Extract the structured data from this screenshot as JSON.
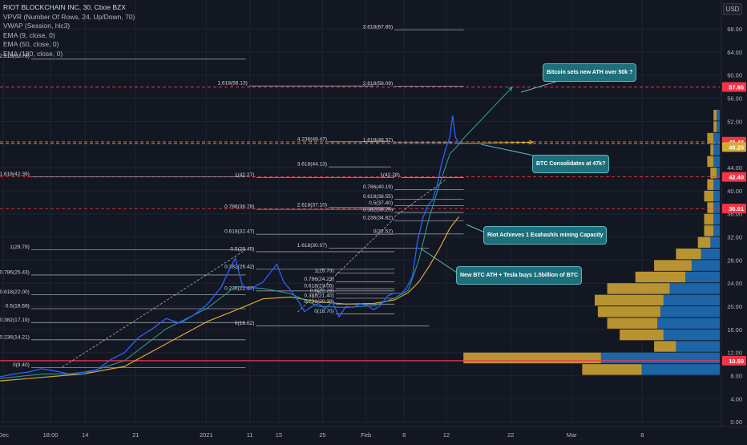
{
  "legend": {
    "title": "RIOT BLOCKCHAIN INC, 30, Cboe BZX",
    "lines": [
      "VPVR (Number Of Rows, 24, Up/Down, 70)",
      "VWAP (Session, hlc3)",
      "EMA (9, close, 0)",
      "EMA (50, close, 0)",
      "EMA (180, close, 0)"
    ]
  },
  "currency_button": "USD",
  "colors": {
    "bg": "#131722",
    "grid": "#1f2433",
    "price": "#2962ff",
    "ema_fast": "#2fa39a",
    "ema_slow": "#d6a935",
    "red_line": "#f23645",
    "fib": "#b2b5be",
    "vol_up": "#d6a935",
    "vol_down": "#1e73be",
    "callout": "#1d6f7a"
  },
  "chart_data": {
    "type": "line",
    "title": "RIOT BLOCKCHAIN INC, 30, Cboe BZX",
    "y_axis": {
      "range": [
        -0.8,
        73
      ],
      "ticks": [
        "0.00",
        "4.00",
        "8.00",
        "12.00",
        "16.00",
        "20.00",
        "24.00",
        "28.00",
        "32.00",
        "36.00",
        "40.00",
        "44.00",
        "48.00",
        "52.00",
        "56.00",
        "60.00",
        "64.00",
        "68.00"
      ]
    },
    "x_axis": {
      "range": [
        0,
        104
      ],
      "ticks": [
        {
          "x": 0.5,
          "label": "Dec"
        },
        {
          "x": 7.3,
          "label": "18:00"
        },
        {
          "x": 12.3,
          "label": "14"
        },
        {
          "x": 19.6,
          "label": "21"
        },
        {
          "x": 29.8,
          "label": "2021"
        },
        {
          "x": 36.1,
          "label": "11"
        },
        {
          "x": 40.3,
          "label": "15"
        },
        {
          "x": 46.6,
          "label": "25"
        },
        {
          "x": 52.9,
          "label": "Feb"
        },
        {
          "x": 58.4,
          "label": "8"
        },
        {
          "x": 64.5,
          "label": "12"
        },
        {
          "x": 73.8,
          "label": "22"
        },
        {
          "x": 82.6,
          "label": "Mar"
        },
        {
          "x": 92.8,
          "label": "8"
        }
      ]
    },
    "price": [
      [
        0,
        7.8
      ],
      [
        2,
        8.3
      ],
      [
        4,
        8.6
      ],
      [
        6,
        9.2
      ],
      [
        8,
        8.8
      ],
      [
        10,
        8.3
      ],
      [
        12,
        8.6
      ],
      [
        14,
        9.0
      ],
      [
        16,
        10.8
      ],
      [
        18,
        12.0
      ],
      [
        20,
        14.6
      ],
      [
        22,
        16.1
      ],
      [
        24,
        17.9
      ],
      [
        26,
        17.1
      ],
      [
        28,
        18.5
      ],
      [
        30,
        20.4
      ],
      [
        32,
        23.4
      ],
      [
        33,
        26.0
      ],
      [
        34,
        28.3
      ],
      [
        35,
        23.7
      ],
      [
        36,
        22.9
      ],
      [
        38,
        24.2
      ],
      [
        40,
        27.3
      ],
      [
        41,
        24.2
      ],
      [
        42,
        22.8
      ],
      [
        43,
        21.1
      ],
      [
        44,
        19.1
      ],
      [
        45,
        19.9
      ],
      [
        46,
        20.5
      ],
      [
        47,
        19.6
      ],
      [
        48,
        20.8
      ],
      [
        49,
        18.2
      ],
      [
        50,
        20.0
      ],
      [
        51,
        19.8
      ],
      [
        52,
        20.4
      ],
      [
        53,
        20.2
      ],
      [
        54,
        19.4
      ],
      [
        55,
        20.2
      ],
      [
        56,
        21.8
      ],
      [
        57,
        22.3
      ],
      [
        58,
        22.2
      ],
      [
        58.7,
        23.1
      ],
      [
        59.6,
        25.2
      ],
      [
        60.3,
        31.1
      ],
      [
        61.1,
        35.3
      ],
      [
        61.8,
        37.4
      ],
      [
        62.5,
        38.4
      ],
      [
        63.2,
        41.1
      ],
      [
        63.7,
        44.1
      ],
      [
        64.4,
        47.3
      ],
      [
        65.0,
        49.3
      ],
      [
        65.4,
        53.0
      ],
      [
        65.8,
        49.3
      ],
      [
        66.3,
        48.0
      ]
    ],
    "ema_fast": [
      [
        0,
        7.5
      ],
      [
        6,
        8.3
      ],
      [
        12,
        8.3
      ],
      [
        18,
        10.6
      ],
      [
        24,
        16.1
      ],
      [
        30,
        19.7
      ],
      [
        34,
        23.4
      ],
      [
        38,
        23.1
      ],
      [
        42,
        22.2
      ],
      [
        46,
        20.0
      ],
      [
        50,
        19.8
      ],
      [
        54,
        20.1
      ],
      [
        57,
        21.4
      ],
      [
        59,
        22.8
      ],
      [
        60.5,
        27.9
      ],
      [
        62,
        35.3
      ],
      [
        63.5,
        41.1
      ],
      [
        65,
        46.4
      ],
      [
        66.3,
        48.0
      ]
    ],
    "ema_slow": [
      [
        0,
        7.1
      ],
      [
        6,
        7.7
      ],
      [
        12,
        8.3
      ],
      [
        18,
        9.6
      ],
      [
        24,
        13.5
      ],
      [
        30,
        17.4
      ],
      [
        34,
        19.3
      ],
      [
        38,
        21.3
      ],
      [
        42,
        21.6
      ],
      [
        46,
        20.8
      ],
      [
        50,
        20.4
      ],
      [
        54,
        20.5
      ],
      [
        57,
        21.1
      ],
      [
        59,
        22.4
      ],
      [
        60.5,
        24.2
      ],
      [
        62,
        26.9
      ],
      [
        63.5,
        30.0
      ],
      [
        65,
        33.5
      ],
      [
        66.3,
        35.5
      ]
    ],
    "horizontal_levels": [
      {
        "price": 57.95,
        "label": "57.95",
        "style": "dashed",
        "color": "#f23645"
      },
      {
        "price": 48.48,
        "label": "48.48",
        "style": "dashed",
        "color": "#f23645"
      },
      {
        "price": 48.25,
        "label": "48.25",
        "style": "dashed",
        "color": "#d6a935"
      },
      {
        "price": 42.4,
        "label": "42.40",
        "style": "dashed",
        "color": "#f23645"
      },
      {
        "price": 36.91,
        "label": "36.91",
        "style": "dashed",
        "color": "#f23645"
      },
      {
        "price": 10.59,
        "label": "10.59",
        "style": "solid",
        "color": "#f23645"
      }
    ],
    "fib_levels": [
      {
        "text": "3.618(67.85)",
        "x1": 57,
        "x2": 67,
        "price": 67.85
      },
      {
        "text": "2.618(62.78)",
        "x1": 4.5,
        "x2": 35.5,
        "price": 62.78
      },
      {
        "text": "1.618(58.13)",
        "x1": 36,
        "x2": 54,
        "price": 58.13
      },
      {
        "text": "2.618(58.09)",
        "x1": 57,
        "x2": 67,
        "price": 58.09
      },
      {
        "text": "4.236(48.47)",
        "x1": 47.5,
        "x2": 56,
        "price": 48.47
      },
      {
        "text": "1.618(48.32)",
        "x1": 57,
        "x2": 65.5,
        "price": 48.32
      },
      {
        "text": "3.618(44.13)",
        "x1": 47.5,
        "x2": 56.5,
        "price": 44.13
      },
      {
        "text": "1.618(42.39)",
        "x1": 4.5,
        "x2": 35.5,
        "price": 42.39
      },
      {
        "text": "1(42.27)",
        "x1": 37,
        "x2": 57,
        "price": 42.27
      },
      {
        "text": "1(42.28)",
        "x1": 58,
        "x2": 67,
        "price": 42.28
      },
      {
        "text": "0.786(40.19)",
        "x1": 57,
        "x2": 67,
        "price": 40.19
      },
      {
        "text": "0.618(38.55)",
        "x1": 57,
        "x2": 67,
        "price": 38.55
      },
      {
        "text": "0.5(37.40)",
        "x1": 57,
        "x2": 67,
        "price": 37.4
      },
      {
        "text": "2.618(37.10)",
        "x1": 47.5,
        "x2": 56.5,
        "price": 37.1
      },
      {
        "text": "0.786(36.78)",
        "x1": 37,
        "x2": 57,
        "price": 36.78
      },
      {
        "text": "0.382(36.25)",
        "x1": 57,
        "x2": 67,
        "price": 36.25
      },
      {
        "text": "0.236(34.82)",
        "x1": 57,
        "x2": 67,
        "price": 34.82
      },
      {
        "text": "0(32.52)",
        "x1": 57,
        "x2": 67,
        "price": 32.52
      },
      {
        "text": "0.618(32.47)",
        "x1": 37,
        "x2": 57,
        "price": 32.47
      },
      {
        "text": "1.618(30.07)",
        "x1": 47.5,
        "x2": 62,
        "price": 30.07
      },
      {
        "text": "1(29.79)",
        "x1": 4.5,
        "x2": 35.5,
        "price": 29.79
      },
      {
        "text": "0.5(29.45)",
        "x1": 37,
        "x2": 57,
        "price": 29.45
      },
      {
        "text": "0.382(26.42)",
        "x1": 37,
        "x2": 57,
        "price": 26.42
      },
      {
        "text": "1(25.73)",
        "x1": 48.5,
        "x2": 57,
        "price": 25.73
      },
      {
        "text": "0.786(25.43)",
        "x1": 4.5,
        "x2": 35.5,
        "price": 25.43
      },
      {
        "text": "0.786(24.23)",
        "x1": 48.5,
        "x2": 57,
        "price": 24.23
      },
      {
        "text": "0.618(23.05)",
        "x1": 48.5,
        "x2": 57,
        "price": 23.05
      },
      {
        "text": "0.236(22.67)",
        "x1": 37,
        "x2": 57,
        "price": 22.67
      },
      {
        "text": "0.618(22.00)",
        "x1": 4.5,
        "x2": 35.5,
        "price": 22.0
      },
      {
        "text": "0.5(22.23)",
        "x1": 48.5,
        "x2": 57,
        "price": 22.23
      },
      {
        "text": "0.382(21.40)",
        "x1": 48.5,
        "x2": 57,
        "price": 21.4
      },
      {
        "text": "0.236(20.38)",
        "x1": 48.5,
        "x2": 57,
        "price": 20.38
      },
      {
        "text": "0.5(19.59)",
        "x1": 4.5,
        "x2": 35.5,
        "price": 19.59
      },
      {
        "text": "0(18.70)",
        "x1": 48.5,
        "x2": 57,
        "price": 18.7
      },
      {
        "text": "0.382(17.19)",
        "x1": 4.5,
        "x2": 35.5,
        "price": 17.19
      },
      {
        "text": "0(16.62)",
        "x1": 37,
        "x2": 62,
        "price": 16.62
      },
      {
        "text": "0.236(14.21)",
        "x1": 4.5,
        "x2": 35.5,
        "price": 14.21
      },
      {
        "text": "0(9.40)",
        "x1": 4.5,
        "x2": 35.5,
        "price": 9.4
      }
    ],
    "trend_lines": [
      {
        "from": [
          9,
          9.5
        ],
        "to": [
          35.5,
          29.8
        ]
      },
      {
        "from": [
          43,
          19.0
        ],
        "to": [
          57,
          35.2
        ]
      },
      {
        "from": [
          57,
          35.5
        ],
        "to": [
          64.5,
          42.0
        ]
      }
    ],
    "arrows": [
      {
        "from": [
          66.3,
          48.2
        ],
        "to": [
          74,
          57.9
        ],
        "color": "#2fa39a"
      },
      {
        "from": [
          66.3,
          48.2
        ],
        "to": [
          77,
          48.4
        ],
        "color": "#d6a935"
      }
    ],
    "annotations": [
      {
        "text": "Bitcoin sets new ATH over 50k ?",
        "anchor": "bitcoin"
      },
      {
        "text": "BTC Consolidates at 47k?",
        "anchor": "consolidates"
      },
      {
        "text": "Riot Achieves 1 Exahash/s mining Capacity",
        "anchor": "exahash"
      },
      {
        "text": "New BTC ATH + Tesla buys 1.5billion of BTC",
        "anchor": "tesla"
      }
    ],
    "volume_profile": [
      {
        "price_low": 8.0,
        "price_high": 10.0,
        "up": 19,
        "down": 25
      },
      {
        "price_low": 10.0,
        "price_high": 12.0,
        "up": 44,
        "down": 38
      },
      {
        "price_low": 12.0,
        "price_high": 14.0,
        "up": 7,
        "down": 14
      },
      {
        "price_low": 14.0,
        "price_high": 16.0,
        "up": 14,
        "down": 18
      },
      {
        "price_low": 16.0,
        "price_high": 18.0,
        "up": 16,
        "down": 20
      },
      {
        "price_low": 18.0,
        "price_high": 20.0,
        "up": 20,
        "down": 19
      },
      {
        "price_low": 20.0,
        "price_high": 22.0,
        "up": 22,
        "down": 18
      },
      {
        "price_low": 22.0,
        "price_high": 24.0,
        "up": 20,
        "down": 16
      },
      {
        "price_low": 24.0,
        "price_high": 26.0,
        "up": 16,
        "down": 11
      },
      {
        "price_low": 26.0,
        "price_high": 28.0,
        "up": 12,
        "down": 9
      },
      {
        "price_low": 28.0,
        "price_high": 30.0,
        "up": 8,
        "down": 6
      },
      {
        "price_low": 30.0,
        "price_high": 32.0,
        "up": 4,
        "down": 3
      },
      {
        "price_low": 32.0,
        "price_high": 34.0,
        "up": 3,
        "down": 2
      },
      {
        "price_low": 34.0,
        "price_high": 36.0,
        "up": 3,
        "down": 2
      },
      {
        "price_low": 36.0,
        "price_high": 38.0,
        "up": 2,
        "down": 2
      },
      {
        "price_low": 38.0,
        "price_high": 40.0,
        "up": 3,
        "down": 2
      },
      {
        "price_low": 40.0,
        "price_high": 42.0,
        "up": 2,
        "down": 2
      },
      {
        "price_low": 42.0,
        "price_high": 44.0,
        "up": 2,
        "down": 1
      },
      {
        "price_low": 44.0,
        "price_high": 46.0,
        "up": 2,
        "down": 2
      },
      {
        "price_low": 46.0,
        "price_high": 48.0,
        "up": 1,
        "down": 2
      },
      {
        "price_low": 48.0,
        "price_high": 50.0,
        "up": 2,
        "down": 2
      },
      {
        "price_low": 50.0,
        "price_high": 52.0,
        "up": 1,
        "down": 1
      },
      {
        "price_low": 52.0,
        "price_high": 54.0,
        "up": 1,
        "down": 1
      }
    ]
  }
}
